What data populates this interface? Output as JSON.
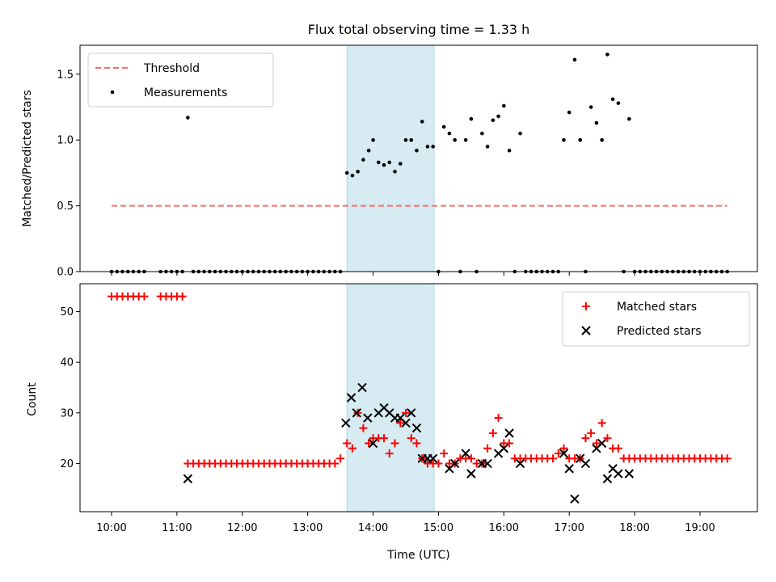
{
  "chart_data": {
    "type": "scatter",
    "title": "Flux total observing time = 1.33 h",
    "xlabel": "Time (UTC)",
    "x_ticks": [
      "10:00",
      "11:00",
      "12:00",
      "13:00",
      "14:00",
      "15:00",
      "16:00",
      "17:00",
      "18:00",
      "19:00"
    ],
    "shaded_interval": [
      "13:36",
      "14:56"
    ],
    "colors": {
      "measurements": "#000000",
      "threshold": "#ff6b6b",
      "matched": "#ff0000",
      "predicted": "#000000",
      "shade": "#add8e6"
    },
    "top": {
      "ylabel": "Matched/Predicted stars",
      "ylim": [
        0,
        1.72
      ],
      "y_ticks": [
        0.0,
        0.5,
        1.0,
        1.5
      ],
      "y_tick_labels": [
        "0.0",
        "0.5",
        "1.0",
        "1.5"
      ],
      "legend_position": "upper-left",
      "threshold": {
        "name": "Threshold",
        "value": 0.5,
        "x_range": [
          "10:00",
          "19:25"
        ]
      },
      "measurements": {
        "name": "Measurements",
        "points": [
          [
            "10:00",
            0
          ],
          [
            "10:05",
            0
          ],
          [
            "10:10",
            0
          ],
          [
            "10:15",
            0
          ],
          [
            "10:20",
            0
          ],
          [
            "10:25",
            0
          ],
          [
            "10:30",
            0
          ],
          [
            "10:45",
            0
          ],
          [
            "10:50",
            0
          ],
          [
            "10:55",
            0
          ],
          [
            "11:00",
            0
          ],
          [
            "11:05",
            0
          ],
          [
            "11:10",
            1.17
          ],
          [
            "11:15",
            0
          ],
          [
            "11:20",
            0
          ],
          [
            "11:25",
            0
          ],
          [
            "11:30",
            0
          ],
          [
            "11:35",
            0
          ],
          [
            "11:40",
            0
          ],
          [
            "11:45",
            0
          ],
          [
            "11:50",
            0
          ],
          [
            "11:55",
            0
          ],
          [
            "12:00",
            0
          ],
          [
            "12:05",
            0
          ],
          [
            "12:10",
            0
          ],
          [
            "12:15",
            0
          ],
          [
            "12:20",
            0
          ],
          [
            "12:25",
            0
          ],
          [
            "12:30",
            0
          ],
          [
            "12:35",
            0
          ],
          [
            "12:40",
            0
          ],
          [
            "12:45",
            0
          ],
          [
            "12:50",
            0
          ],
          [
            "12:55",
            0
          ],
          [
            "13:00",
            0
          ],
          [
            "13:05",
            0
          ],
          [
            "13:10",
            0
          ],
          [
            "13:15",
            0
          ],
          [
            "13:20",
            0
          ],
          [
            "13:25",
            0
          ],
          [
            "13:30",
            0
          ],
          [
            "13:36",
            0.75
          ],
          [
            "13:41",
            0.73
          ],
          [
            "13:46",
            0.76
          ],
          [
            "13:51",
            0.85
          ],
          [
            "13:56",
            0.92
          ],
          [
            "14:00",
            1.0
          ],
          [
            "14:05",
            0.83
          ],
          [
            "14:10",
            0.81
          ],
          [
            "14:15",
            0.83
          ],
          [
            "14:20",
            0.76
          ],
          [
            "14:25",
            0.82
          ],
          [
            "14:30",
            1.0
          ],
          [
            "14:35",
            1.0
          ],
          [
            "14:40",
            0.92
          ],
          [
            "14:45",
            1.14
          ],
          [
            "14:50",
            0.95
          ],
          [
            "14:55",
            0.95
          ],
          [
            "15:00",
            0
          ],
          [
            "15:05",
            1.1
          ],
          [
            "15:10",
            1.05
          ],
          [
            "15:15",
            1.0
          ],
          [
            "15:20",
            0
          ],
          [
            "15:25",
            1.0
          ],
          [
            "15:30",
            1.16
          ],
          [
            "15:35",
            0
          ],
          [
            "15:40",
            1.05
          ],
          [
            "15:45",
            0.95
          ],
          [
            "15:50",
            1.15
          ],
          [
            "15:55",
            1.18
          ],
          [
            "16:00",
            1.26
          ],
          [
            "16:05",
            0.92
          ],
          [
            "16:10",
            0
          ],
          [
            "16:15",
            1.05
          ],
          [
            "16:20",
            0
          ],
          [
            "16:25",
            0
          ],
          [
            "16:30",
            0
          ],
          [
            "16:35",
            0
          ],
          [
            "16:40",
            0
          ],
          [
            "16:45",
            0
          ],
          [
            "16:50",
            0
          ],
          [
            "16:55",
            1.0
          ],
          [
            "17:00",
            1.21
          ],
          [
            "17:05",
            1.61
          ],
          [
            "17:10",
            1.0
          ],
          [
            "17:15",
            0
          ],
          [
            "17:20",
            1.25
          ],
          [
            "17:25",
            1.13
          ],
          [
            "17:30",
            1.0
          ],
          [
            "17:35",
            1.65
          ],
          [
            "17:40",
            1.31
          ],
          [
            "17:45",
            1.28
          ],
          [
            "17:50",
            0
          ],
          [
            "17:55",
            1.16
          ],
          [
            "18:00",
            0
          ],
          [
            "18:05",
            0
          ],
          [
            "18:10",
            0
          ],
          [
            "18:15",
            0
          ],
          [
            "18:20",
            0
          ],
          [
            "18:25",
            0
          ],
          [
            "18:30",
            0
          ],
          [
            "18:35",
            0
          ],
          [
            "18:40",
            0
          ],
          [
            "18:45",
            0
          ],
          [
            "18:50",
            0
          ],
          [
            "18:55",
            0
          ],
          [
            "19:00",
            0
          ],
          [
            "19:05",
            0
          ],
          [
            "19:10",
            0
          ],
          [
            "19:15",
            0
          ],
          [
            "19:20",
            0
          ],
          [
            "19:25",
            0
          ]
        ]
      }
    },
    "bottom": {
      "ylabel": "Count",
      "ylim": [
        10.5,
        55.5
      ],
      "y_ticks": [
        20,
        30,
        40,
        50
      ],
      "y_tick_labels": [
        "20",
        "30",
        "40",
        "50"
      ],
      "legend_position": "upper-right",
      "matched": {
        "name": "Matched stars",
        "points": [
          [
            "10:00",
            53
          ],
          [
            "10:05",
            53
          ],
          [
            "10:10",
            53
          ],
          [
            "10:15",
            53
          ],
          [
            "10:20",
            53
          ],
          [
            "10:25",
            53
          ],
          [
            "10:30",
            53
          ],
          [
            "10:45",
            53
          ],
          [
            "10:50",
            53
          ],
          [
            "10:55",
            53
          ],
          [
            "11:00",
            53
          ],
          [
            "11:05",
            53
          ],
          [
            "11:10",
            20
          ],
          [
            "11:15",
            20
          ],
          [
            "11:20",
            20
          ],
          [
            "11:25",
            20
          ],
          [
            "11:30",
            20
          ],
          [
            "11:35",
            20
          ],
          [
            "11:40",
            20
          ],
          [
            "11:45",
            20
          ],
          [
            "11:50",
            20
          ],
          [
            "11:55",
            20
          ],
          [
            "12:00",
            20
          ],
          [
            "12:05",
            20
          ],
          [
            "12:10",
            20
          ],
          [
            "12:15",
            20
          ],
          [
            "12:20",
            20
          ],
          [
            "12:25",
            20
          ],
          [
            "12:30",
            20
          ],
          [
            "12:35",
            20
          ],
          [
            "12:40",
            20
          ],
          [
            "12:45",
            20
          ],
          [
            "12:50",
            20
          ],
          [
            "12:55",
            20
          ],
          [
            "13:00",
            20
          ],
          [
            "13:05",
            20
          ],
          [
            "13:10",
            20
          ],
          [
            "13:15",
            20
          ],
          [
            "13:20",
            20
          ],
          [
            "13:25",
            20
          ],
          [
            "13:30",
            21
          ],
          [
            "13:36",
            24
          ],
          [
            "13:41",
            23
          ],
          [
            "13:46",
            30
          ],
          [
            "13:51",
            27
          ],
          [
            "13:56",
            24
          ],
          [
            "14:00",
            25
          ],
          [
            "14:05",
            25
          ],
          [
            "14:10",
            25
          ],
          [
            "14:15",
            22
          ],
          [
            "14:20",
            24
          ],
          [
            "14:25",
            28
          ],
          [
            "14:30",
            30
          ],
          [
            "14:35",
            25
          ],
          [
            "14:40",
            24
          ],
          [
            "14:45",
            21
          ],
          [
            "14:50",
            20
          ],
          [
            "14:55",
            20
          ],
          [
            "15:00",
            20
          ],
          [
            "15:05",
            22
          ],
          [
            "15:10",
            20
          ],
          [
            "15:15",
            20
          ],
          [
            "15:20",
            21
          ],
          [
            "15:25",
            21
          ],
          [
            "15:30",
            21
          ],
          [
            "15:35",
            20
          ],
          [
            "15:40",
            20
          ],
          [
            "15:45",
            23
          ],
          [
            "15:50",
            26
          ],
          [
            "15:55",
            29
          ],
          [
            "16:00",
            24
          ],
          [
            "16:05",
            24
          ],
          [
            "16:10",
            21
          ],
          [
            "16:15",
            21
          ],
          [
            "16:20",
            21
          ],
          [
            "16:25",
            21
          ],
          [
            "16:30",
            21
          ],
          [
            "16:35",
            21
          ],
          [
            "16:40",
            21
          ],
          [
            "16:45",
            21
          ],
          [
            "16:50",
            22
          ],
          [
            "16:55",
            23
          ],
          [
            "17:00",
            21
          ],
          [
            "17:05",
            21
          ],
          [
            "17:10",
            21
          ],
          [
            "17:15",
            25
          ],
          [
            "17:20",
            26
          ],
          [
            "17:25",
            24
          ],
          [
            "17:30",
            28
          ],
          [
            "17:35",
            25
          ],
          [
            "17:40",
            23
          ],
          [
            "17:45",
            23
          ],
          [
            "17:50",
            21
          ],
          [
            "17:55",
            21
          ],
          [
            "18:00",
            21
          ],
          [
            "18:05",
            21
          ],
          [
            "18:10",
            21
          ],
          [
            "18:15",
            21
          ],
          [
            "18:20",
            21
          ],
          [
            "18:25",
            21
          ],
          [
            "18:30",
            21
          ],
          [
            "18:35",
            21
          ],
          [
            "18:40",
            21
          ],
          [
            "18:45",
            21
          ],
          [
            "18:50",
            21
          ],
          [
            "18:55",
            21
          ],
          [
            "19:00",
            21
          ],
          [
            "19:05",
            21
          ],
          [
            "19:10",
            21
          ],
          [
            "19:15",
            21
          ],
          [
            "19:20",
            21
          ],
          [
            "19:25",
            21
          ]
        ]
      },
      "predicted": {
        "name": "Predicted stars",
        "points": [
          [
            "11:10",
            17
          ],
          [
            "13:35",
            28
          ],
          [
            "13:40",
            33
          ],
          [
            "13:45",
            30
          ],
          [
            "13:50",
            35
          ],
          [
            "13:55",
            29
          ],
          [
            "14:00",
            24
          ],
          [
            "14:05",
            30
          ],
          [
            "14:10",
            31
          ],
          [
            "14:15",
            30
          ],
          [
            "14:20",
            29
          ],
          [
            "14:25",
            29
          ],
          [
            "14:30",
            28
          ],
          [
            "14:35",
            30
          ],
          [
            "14:40",
            27
          ],
          [
            "14:45",
            21
          ],
          [
            "14:50",
            21
          ],
          [
            "14:55",
            21
          ],
          [
            "15:10",
            19
          ],
          [
            "15:15",
            20
          ],
          [
            "15:25",
            22
          ],
          [
            "15:30",
            18
          ],
          [
            "15:40",
            20
          ],
          [
            "15:45",
            20
          ],
          [
            "15:55",
            22
          ],
          [
            "16:00",
            23
          ],
          [
            "16:05",
            26
          ],
          [
            "16:15",
            20
          ],
          [
            "16:55",
            22
          ],
          [
            "17:00",
            19
          ],
          [
            "17:05",
            13
          ],
          [
            "17:10",
            21
          ],
          [
            "17:15",
            20
          ],
          [
            "17:25",
            23
          ],
          [
            "17:30",
            24
          ],
          [
            "17:35",
            17
          ],
          [
            "17:40",
            19
          ],
          [
            "17:45",
            18
          ],
          [
            "17:55",
            18
          ]
        ]
      }
    }
  }
}
